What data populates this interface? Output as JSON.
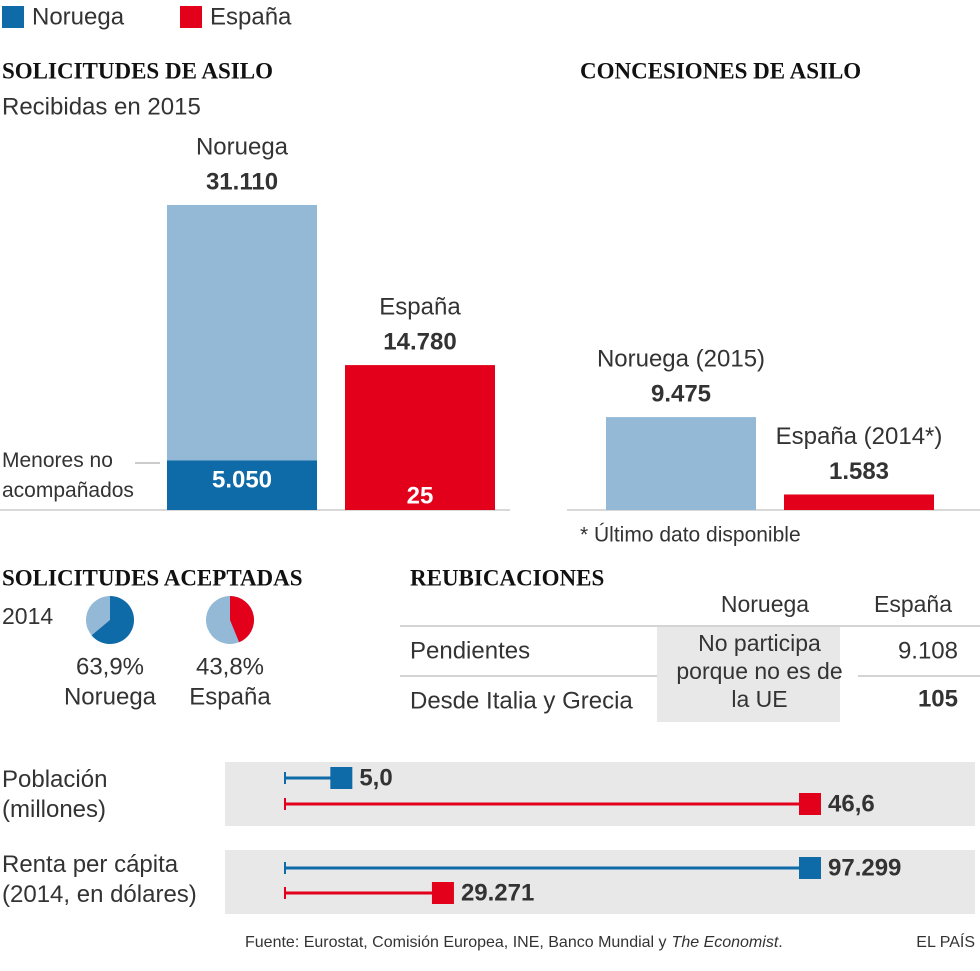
{
  "legend": [
    {
      "name": "Noruega",
      "color": "#0e6ba8"
    },
    {
      "name": "España",
      "color": "#e2001a"
    }
  ],
  "chart_data": [
    {
      "type": "bar",
      "title": "SOLICITUDES DE ASILO",
      "subtitle": "Recibidas en 2015",
      "categories": [
        "Noruega",
        "España"
      ],
      "values": [
        31110,
        14780
      ],
      "value_labels": [
        "31.110",
        "14.780"
      ],
      "colors": [
        "#93b9d6",
        "#e2001a"
      ],
      "minors": {
        "label": "Menores no acompañados",
        "values": [
          5050,
          25
        ],
        "value_labels": [
          "5.050",
          "25"
        ],
        "colors": [
          "#0e6ba8",
          "#e2001a"
        ]
      }
    },
    {
      "type": "bar",
      "title": "CONCESIONES DE ASILO",
      "categories": [
        "Noruega (2015)",
        "España (2014*)"
      ],
      "values": [
        9475,
        1583
      ],
      "value_labels": [
        "9.475",
        "1.583"
      ],
      "colors": [
        "#93b9d6",
        "#e2001a"
      ],
      "note": "* Último dato disponible"
    },
    {
      "type": "pie",
      "title": "SOLICITUDES ACEPTADAS",
      "subtitle": "2014",
      "categories": [
        "Noruega",
        "España"
      ],
      "values": [
        63.9,
        43.8
      ],
      "value_labels": [
        "63,9%",
        "43,8%"
      ],
      "colors": [
        "#0e6ba8",
        "#e2001a"
      ],
      "rest_color": "#93b9d6"
    },
    {
      "type": "hbar",
      "title": "Población (millones)",
      "values": [
        5.0,
        46.6
      ],
      "value_labels": [
        "5,0",
        "46,6"
      ],
      "colors": [
        "#0e6ba8",
        "#e2001a"
      ]
    },
    {
      "type": "hbar",
      "title": "Renta per cápita (2014, en dólares)",
      "values": [
        97299,
        29271
      ],
      "value_labels": [
        "97.299",
        "29.271"
      ],
      "colors": [
        "#0e6ba8",
        "#e2001a"
      ]
    }
  ],
  "table": {
    "title": "REUBICACIONES",
    "columns": [
      "Noruega",
      "España"
    ],
    "rows": [
      "Pendientes",
      "Desde Italia y Grecia"
    ],
    "noruega": "No participa porque no es de la UE",
    "espana": [
      "9.108",
      "105"
    ]
  },
  "source": {
    "text": "Fuente: Eurostat, Comisión Europea, INE, Banco Mundial y",
    "italic": "The Economist",
    "end": "."
  },
  "credit": "EL PAÍS"
}
